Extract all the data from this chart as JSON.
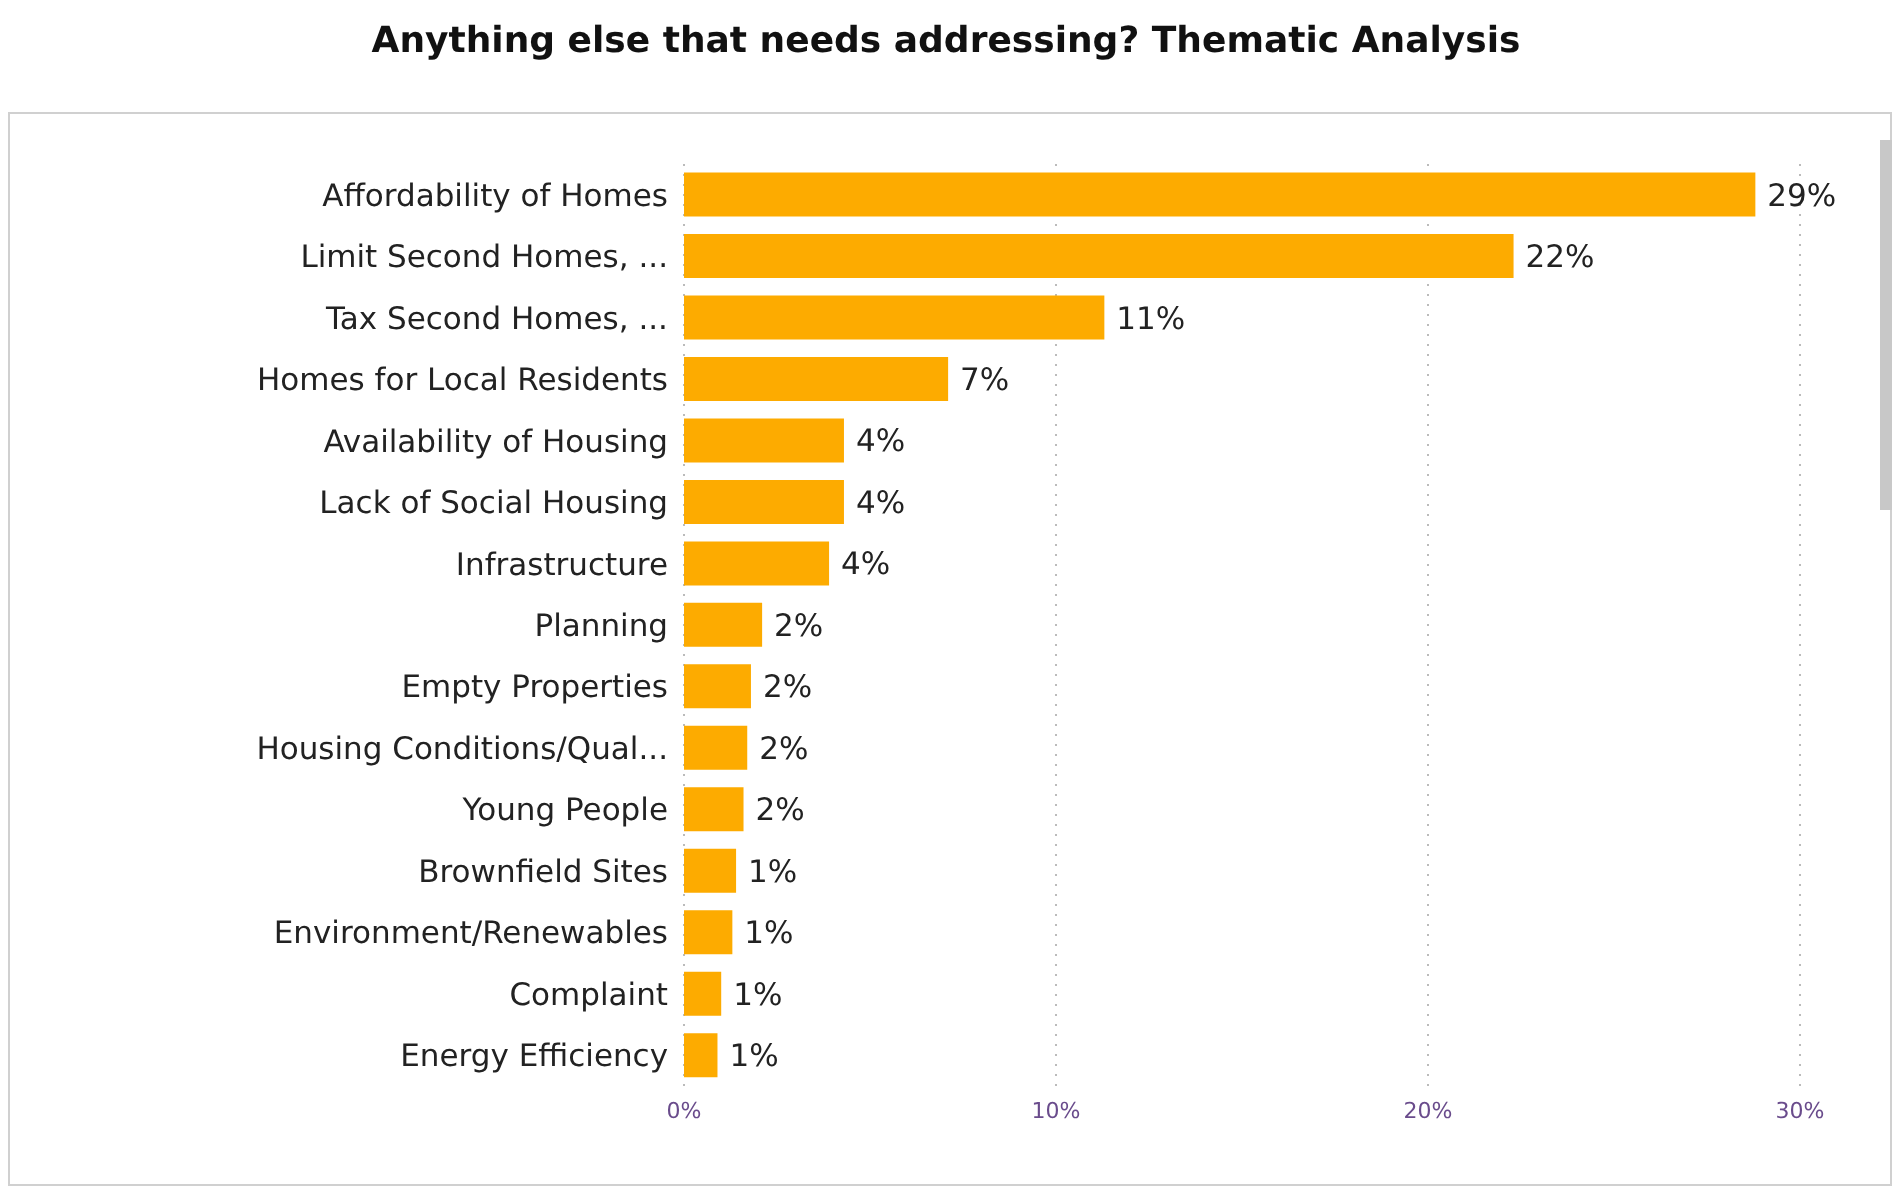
{
  "chart_data": {
    "type": "bar",
    "orientation": "horizontal",
    "title": "Anything else that needs addressing? Thematic Analysis",
    "categories": [
      "Affordability of Homes",
      "Limit Second Homes, ...",
      "Tax Second Homes, ...",
      "Homes for Local Residents",
      "Availability of Housing",
      "Lack of Social Housing",
      "Infrastructure",
      "Planning",
      "Empty Properties",
      "Housing Conditions/Qual...",
      "Young People",
      "Brownfield Sites",
      "Environment/Renewables",
      "Complaint",
      "Energy Efficiency"
    ],
    "values": [
      28.8,
      22.3,
      11.3,
      7.1,
      4.3,
      4.3,
      3.9,
      2.1,
      1.8,
      1.7,
      1.6,
      1.4,
      1.3,
      1.0,
      0.9
    ],
    "value_labels": [
      "29%",
      "22%",
      "11%",
      "7%",
      "4%",
      "4%",
      "4%",
      "2%",
      "2%",
      "2%",
      "2%",
      "1%",
      "1%",
      "1%",
      "1%"
    ],
    "color": "#fdab00",
    "xlim": [
      0,
      30
    ],
    "xticks": [
      {
        "value": 0,
        "label": "0%"
      },
      {
        "value": 10,
        "label": "10%"
      },
      {
        "value": 20,
        "label": "20%"
      },
      {
        "value": 30,
        "label": "30%"
      }
    ],
    "grid": "x"
  }
}
